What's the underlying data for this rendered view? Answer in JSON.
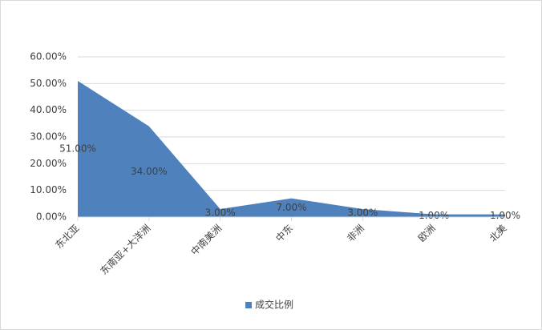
{
  "chart_data": {
    "type": "area",
    "categories": [
      "东北亚",
      "东南亚+大洋洲",
      "中南美洲",
      "中东",
      "非洲",
      "欧洲",
      "北美"
    ],
    "series": [
      {
        "name": "成交比例",
        "color": "#4f81bd",
        "values": [
          51,
          34,
          3,
          7,
          3,
          1,
          1
        ],
        "value_labels": [
          "51.00%",
          "34.00%",
          "3.00%",
          "7.00%",
          "3.00%",
          "1.00%",
          "1.00%"
        ]
      }
    ],
    "ylim": [
      0,
      60
    ],
    "yticks": [
      {
        "value": 0,
        "label": "0.00%"
      },
      {
        "value": 10,
        "label": "10.00%"
      },
      {
        "value": 20,
        "label": "20.00%"
      },
      {
        "value": 30,
        "label": "30.00%"
      },
      {
        "value": 40,
        "label": "40.00%"
      },
      {
        "value": 50,
        "label": "50.00%"
      },
      {
        "value": 60,
        "label": "60.00%"
      }
    ],
    "grid": true,
    "legend": "bottom"
  }
}
